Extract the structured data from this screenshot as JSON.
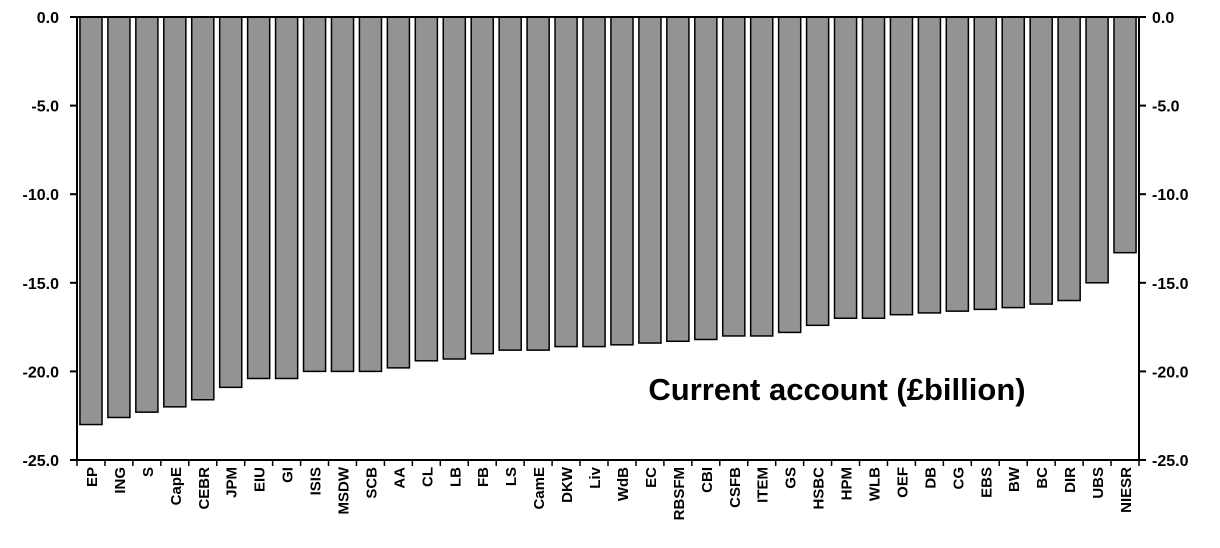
{
  "chart_data": {
    "type": "bar",
    "title": "Current account (£billion)",
    "xlabel": "",
    "ylabel": "",
    "ylim": [
      -25,
      0
    ],
    "yticks": [
      "0.0",
      "-5.0",
      "-10.0",
      "-15.0",
      "-20.0",
      "-25.0"
    ],
    "ytick_values": [
      0,
      -5,
      -10,
      -15,
      -20,
      -25
    ],
    "grid": false,
    "legend": "none",
    "bar_color": "#939393",
    "categories": [
      "EP",
      "ING",
      "S",
      "CapE",
      "CEBR",
      "JPM",
      "EIU",
      "GI",
      "ISIS",
      "MSDW",
      "SCB",
      "AA",
      "CL",
      "LB",
      "FB",
      "LS",
      "CamE",
      "DKW",
      "Liv",
      "WdB",
      "EC",
      "RBSFM",
      "CBI",
      "CSFB",
      "ITEM",
      "GS",
      "HSBC",
      "HPM",
      "WLB",
      "OEF",
      "DB",
      "CG",
      "EBS",
      "BW",
      "BC",
      "DIR",
      "UBS",
      "NIESR"
    ],
    "values": [
      -23.0,
      -22.6,
      -22.3,
      -22.0,
      -21.6,
      -20.9,
      -20.4,
      -20.4,
      -20.0,
      -20.0,
      -20.0,
      -19.8,
      -19.4,
      -19.3,
      -19.0,
      -18.8,
      -18.8,
      -18.6,
      -18.6,
      -18.5,
      -18.4,
      -18.3,
      -18.2,
      -18.0,
      -18.0,
      -17.8,
      -17.4,
      -17.0,
      -17.0,
      -16.8,
      -16.7,
      -16.6,
      -16.5,
      -16.4,
      -16.2,
      -16.0,
      -15.0,
      -13.3
    ]
  }
}
